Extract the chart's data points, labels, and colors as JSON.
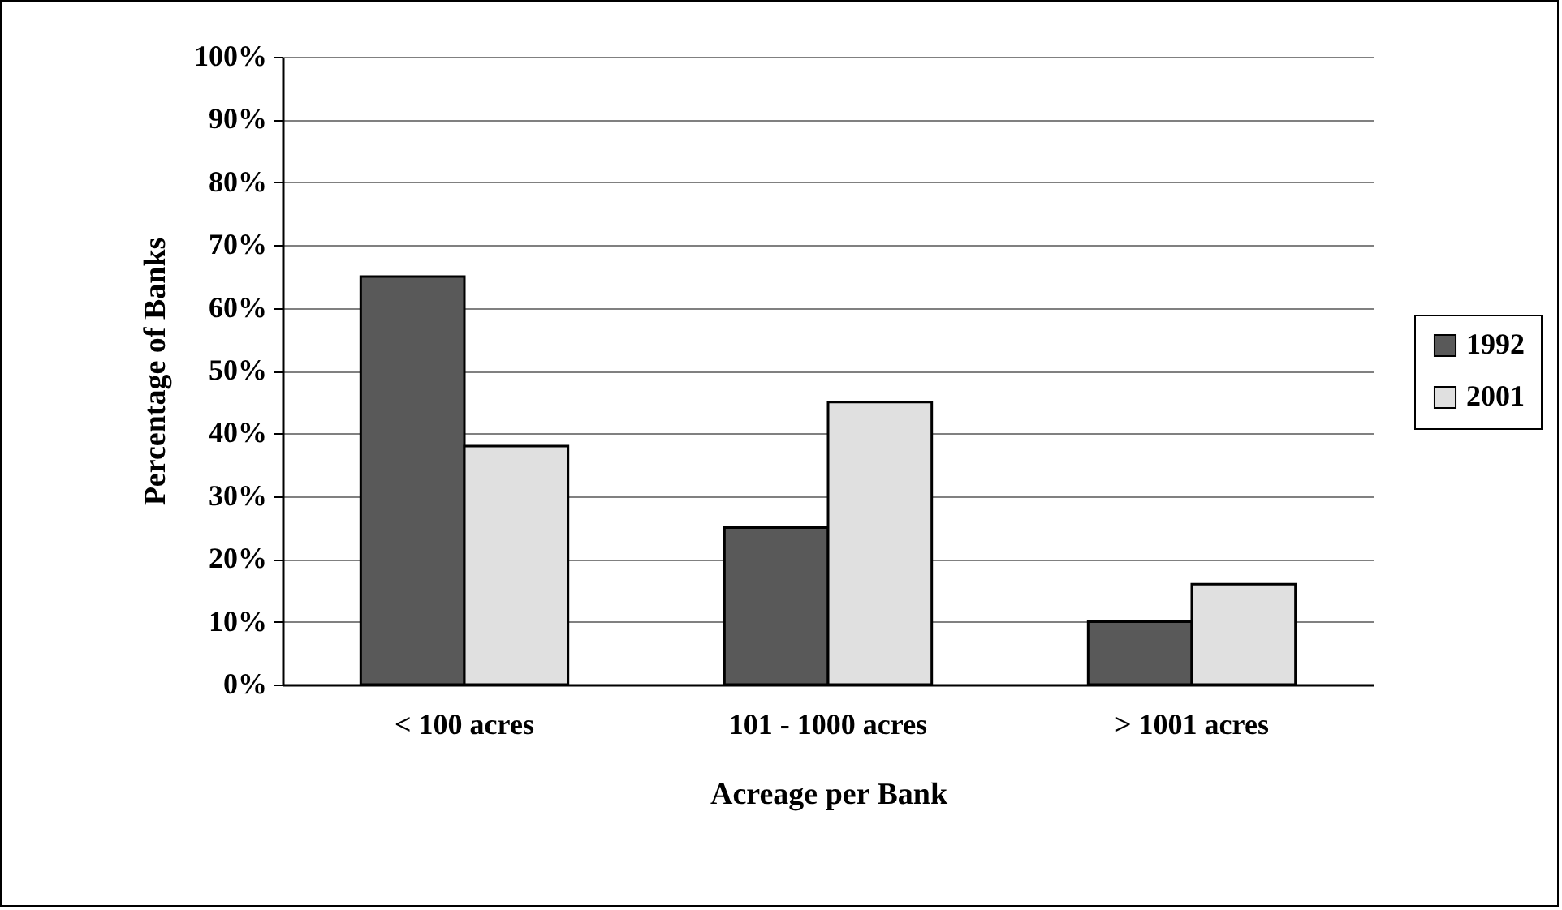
{
  "chart_data": {
    "type": "bar",
    "xlabel": "Acreage per Bank",
    "ylabel": "Percentage of Banks",
    "categories": [
      "< 100 acres",
      "101 - 1000 acres",
      "> 1001 acres"
    ],
    "series": [
      {
        "name": "1992",
        "color": "#595959",
        "values": [
          65,
          25,
          10
        ]
      },
      {
        "name": "2001",
        "color": "#e0e0e0",
        "values": [
          38,
          45,
          16
        ]
      }
    ],
    "ylim": [
      0,
      100
    ],
    "yticks": [
      {
        "value": 0,
        "label": "0%"
      },
      {
        "value": 10,
        "label": "10%"
      },
      {
        "value": 20,
        "label": "20%"
      },
      {
        "value": 30,
        "label": "30%"
      },
      {
        "value": 40,
        "label": "40%"
      },
      {
        "value": 50,
        "label": "50%"
      },
      {
        "value": 60,
        "label": "60%"
      },
      {
        "value": 70,
        "label": "70%"
      },
      {
        "value": 80,
        "label": "80%"
      },
      {
        "value": 90,
        "label": "90%"
      },
      {
        "value": 100,
        "label": "100%"
      }
    ],
    "grid": "y",
    "legend": "right"
  }
}
